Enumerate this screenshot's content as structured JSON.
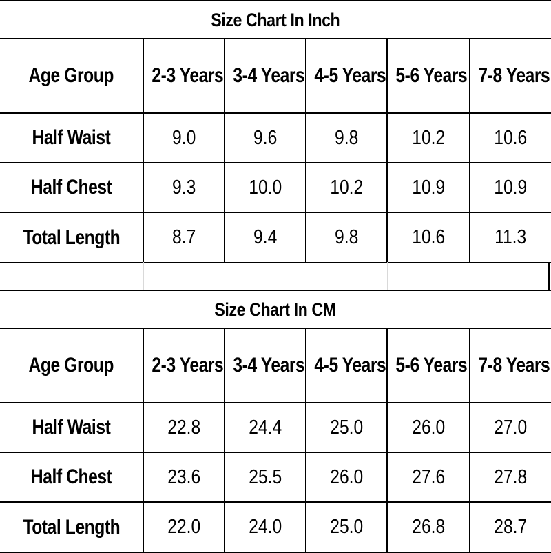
{
  "inch_chart": {
    "title": "Size Chart In Inch",
    "header_label": "Age Group",
    "columns": [
      "2-3 Years",
      "3-4 Years",
      "4-5 Years",
      "5-6 Years",
      "7-8 Years"
    ],
    "rows": [
      {
        "label": "Half Waist",
        "values": [
          "9.0",
          "9.6",
          "9.8",
          "10.2",
          "10.6"
        ]
      },
      {
        "label": "Half Chest",
        "values": [
          "9.3",
          "10.0",
          "10.2",
          "10.9",
          "10.9"
        ]
      },
      {
        "label": "Total Length",
        "values": [
          "8.7",
          "9.4",
          "9.8",
          "10.6",
          "11.3"
        ]
      }
    ]
  },
  "cm_chart": {
    "title": "Size Chart In CM",
    "header_label": "Age Group",
    "columns": [
      "2-3 Years",
      "3-4 Years",
      "4-5 Years",
      "5-6 Years",
      "7-8 Years"
    ],
    "rows": [
      {
        "label": "Half Waist",
        "values": [
          "22.8",
          "24.4",
          "25.0",
          "26.0",
          "27.0"
        ]
      },
      {
        "label": "Half Chest",
        "values": [
          "23.6",
          "25.5",
          "26.0",
          "27.6",
          "27.8"
        ]
      },
      {
        "label": "Total Length",
        "values": [
          "22.0",
          "24.0",
          "25.0",
          "26.8",
          "28.7"
        ]
      }
    ]
  }
}
